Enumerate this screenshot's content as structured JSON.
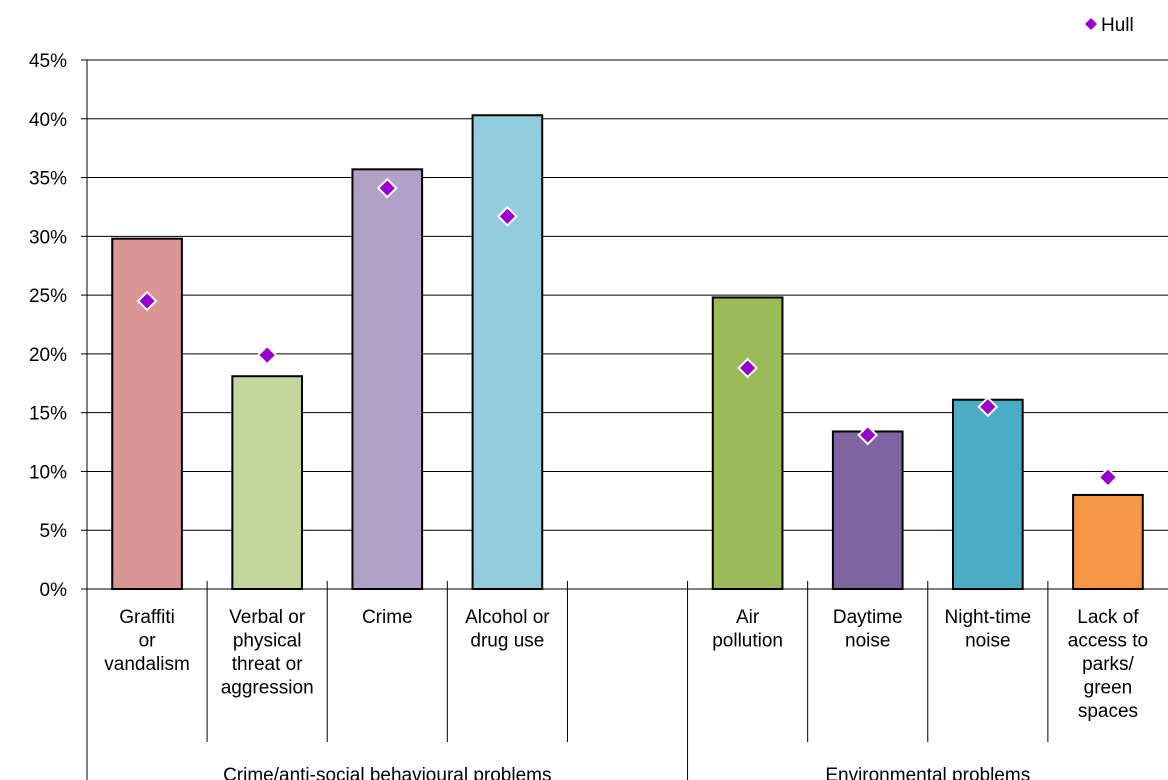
{
  "chart_data": {
    "type": "bar",
    "ylim": [
      0,
      45
    ],
    "y_ticks": [
      "0%",
      "5%",
      "10%",
      "15%",
      "20%",
      "25%",
      "30%",
      "35%",
      "40%",
      "45%"
    ],
    "grid": true,
    "legend_position": "top-right",
    "categories": [
      {
        "label_lines": [
          "Graffiti",
          "or",
          "vandalism"
        ],
        "value": 29.8,
        "hull": 24.5,
        "color": "#d99594"
      },
      {
        "label_lines": [
          "Verbal or",
          "physical",
          "threat or",
          "aggression"
        ],
        "value": 18.1,
        "hull": 19.9,
        "color": "#c3d69b"
      },
      {
        "label_lines": [
          "Crime"
        ],
        "value": 35.7,
        "hull": 34.1,
        "color": "#b2a1c7"
      },
      {
        "label_lines": [
          "Alcohol or",
          "drug use"
        ],
        "value": 40.3,
        "hull": 31.7,
        "color": "#93cddd"
      },
      {
        "label_lines": [],
        "value": null,
        "hull": null,
        "color": null
      },
      {
        "label_lines": [
          "Air",
          "pollution"
        ],
        "value": 24.8,
        "hull": 18.8,
        "color": "#9bbb59"
      },
      {
        "label_lines": [
          "Daytime",
          "noise"
        ],
        "value": 13.4,
        "hull": 13.1,
        "color": "#8064a2"
      },
      {
        "label_lines": [
          "Night-time",
          "noise"
        ],
        "value": 16.1,
        "hull": 15.5,
        "color": "#4bacc6"
      },
      {
        "label_lines": [
          "Lack of",
          "access to",
          "parks/",
          "green",
          "spaces"
        ],
        "value": 8.0,
        "hull": 9.5,
        "color": "#f79646"
      }
    ],
    "groups": [
      {
        "label": "Crime/anti-social behavioural problems",
        "categories_from": 0,
        "categories_to": 4
      },
      {
        "label": "Environmental problems",
        "categories_from": 5,
        "categories_to": 8
      }
    ],
    "series": [
      {
        "name": "Hull",
        "marker": "diamond",
        "color": "#9900cc"
      }
    ]
  }
}
